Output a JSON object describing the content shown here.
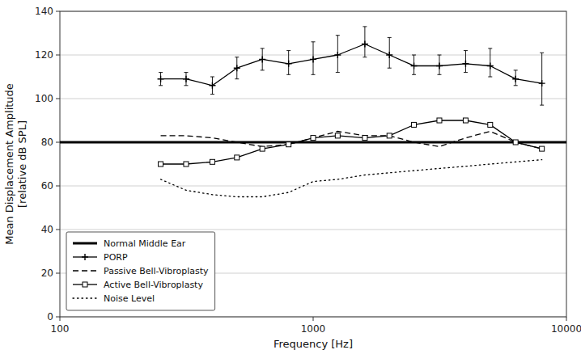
{
  "chart_data": {
    "type": "line",
    "x_label": "Frequency [Hz]",
    "y_label": "Mean Displacement Amplitude\n[relative dB SPL]",
    "log": "x",
    "xlim": [
      100,
      10000
    ],
    "xticks": [
      100,
      1000,
      10000
    ],
    "ylim": [
      0,
      140
    ],
    "yticks": [
      0,
      20,
      40,
      60,
      80,
      100,
      120,
      140
    ],
    "grid": "y",
    "legend": "lower left",
    "series": [
      {
        "name": "Normal Middle Ear",
        "color": "#000000",
        "line_style": "solid",
        "marker": "none",
        "x": [
          100,
          10000
        ],
        "values": [
          80,
          80
        ]
      },
      {
        "name": "PORP",
        "color": "#000000",
        "line_style": "solid",
        "marker": "plus",
        "x": [
          250,
          315,
          400,
          500,
          630,
          800,
          1000,
          1250,
          1600,
          2000,
          2500,
          3150,
          4000,
          5000,
          6300,
          8000
        ],
        "values": [
          109,
          109,
          106,
          114,
          118,
          116,
          118,
          120,
          125,
          120,
          115,
          115,
          116,
          115,
          109,
          107
        ],
        "error_low": [
          3,
          3,
          4,
          5,
          5,
          5,
          7,
          8,
          6,
          6,
          4,
          4,
          4,
          5,
          3,
          10
        ],
        "error_high": [
          3,
          3,
          4,
          5,
          5,
          6,
          8,
          9,
          8,
          8,
          5,
          5,
          6,
          8,
          4,
          14
        ]
      },
      {
        "name": "Passive Bell-Vibroplasty",
        "color": "#000000",
        "line_style": "dashed",
        "marker": "none",
        "x": [
          250,
          315,
          400,
          500,
          630,
          800,
          1000,
          1250,
          1600,
          2000,
          2500,
          3150,
          4000,
          5000,
          6300,
          8000
        ],
        "values": [
          83,
          83,
          82,
          80,
          78,
          79,
          82,
          85,
          83,
          83,
          80,
          78,
          82,
          85,
          80,
          77
        ]
      },
      {
        "name": "Active Bell-Vibroplasty",
        "color": "#000000",
        "line_style": "solid",
        "marker": "square",
        "x": [
          250,
          315,
          400,
          500,
          630,
          800,
          1000,
          1250,
          1600,
          2000,
          2500,
          3150,
          4000,
          5000,
          6300,
          8000
        ],
        "values": [
          70,
          70,
          71,
          73,
          77,
          79,
          82,
          83,
          82,
          83,
          88,
          90,
          90,
          88,
          80,
          77
        ]
      },
      {
        "name": "Noise Level",
        "color": "#000000",
        "line_style": "dotted",
        "marker": "none",
        "x": [
          250,
          315,
          400,
          500,
          630,
          800,
          1000,
          1250,
          1600,
          2000,
          2500,
          3150,
          4000,
          5000,
          6300,
          8000
        ],
        "values": [
          63,
          58,
          56,
          55,
          55,
          57,
          62,
          63,
          65,
          66,
          67,
          68,
          69,
          70,
          71,
          72
        ]
      }
    ]
  }
}
